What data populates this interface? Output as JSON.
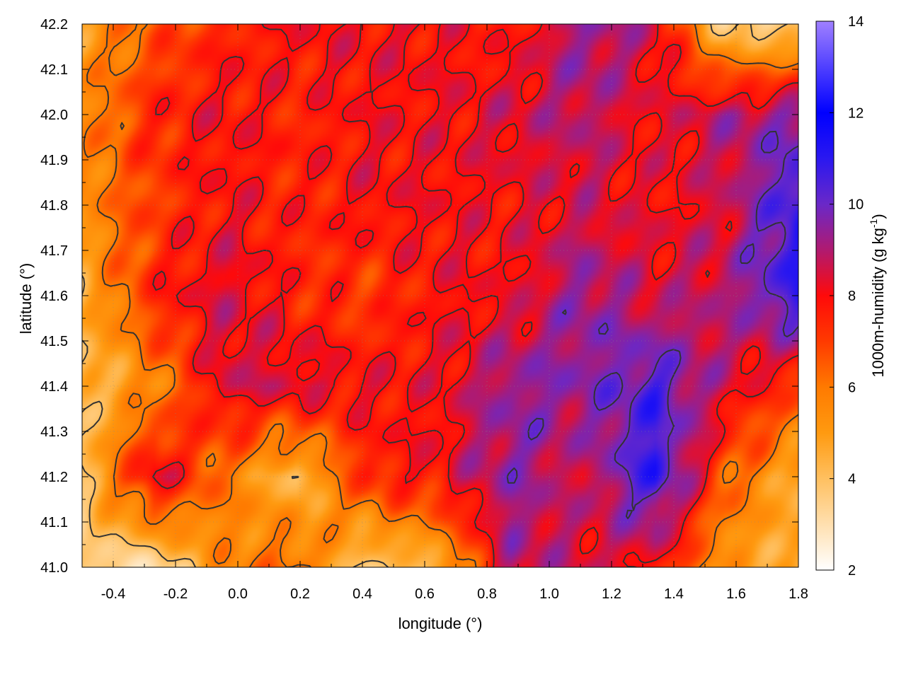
{
  "chart_data": {
    "type": "heatmap",
    "title": "",
    "xlabel": "longitude (°)",
    "ylabel": "latitude (°)",
    "xlim": [
      -0.5,
      1.8
    ],
    "ylim": [
      41.0,
      42.2
    ],
    "x_ticks": [
      "-0.4",
      "-0.2",
      "0.0",
      "0.2",
      "0.4",
      "0.6",
      "0.8",
      "1.0",
      "1.2",
      "1.4",
      "1.6",
      "1.8"
    ],
    "x_tick_values": [
      -0.4,
      -0.2,
      0.0,
      0.2,
      0.4,
      0.6,
      0.8,
      1.0,
      1.2,
      1.4,
      1.6,
      1.8
    ],
    "y_ticks": [
      "41.0",
      "41.1",
      "41.2",
      "41.3",
      "41.4",
      "41.5",
      "41.6",
      "41.7",
      "41.8",
      "41.9",
      "42.0",
      "42.1",
      "42.2"
    ],
    "y_tick_values": [
      41.0,
      41.1,
      41.2,
      41.3,
      41.4,
      41.5,
      41.6,
      41.7,
      41.8,
      41.9,
      42.0,
      42.1,
      42.2
    ],
    "grid": true,
    "colorbar": {
      "label_prefix": "1000m-humidity (g kg",
      "label_sup": "-1",
      "label_suffix": ")",
      "range": [
        2,
        14
      ],
      "ticks": [
        "2",
        "4",
        "6",
        "8",
        "10",
        "12",
        "14"
      ],
      "tick_values": [
        2,
        4,
        6,
        8,
        10,
        12,
        14
      ],
      "colors": [
        {
          "value": 2,
          "color": "#ffffff"
        },
        {
          "value": 4,
          "color": "#ffc060"
        },
        {
          "value": 5,
          "color": "#ff9a10"
        },
        {
          "value": 6,
          "color": "#ff7a00"
        },
        {
          "value": 7,
          "color": "#ff3a00"
        },
        {
          "value": 8,
          "color": "#ff0a0a"
        },
        {
          "value": 9,
          "color": "#b01a70"
        },
        {
          "value": 10,
          "color": "#6a28c8"
        },
        {
          "value": 11,
          "color": "#2a18f0"
        },
        {
          "value": 12,
          "color": "#0000ff"
        },
        {
          "value": 14,
          "color": "#a080ff"
        }
      ]
    },
    "contour_color": "#333333",
    "grid_lon": [
      -0.5,
      -0.27,
      -0.04,
      0.19,
      0.42,
      0.65,
      0.88,
      1.11,
      1.34,
      1.57,
      1.8
    ],
    "grid_lat": [
      41.0,
      41.2,
      41.4,
      41.6,
      41.8,
      42.0,
      42.2
    ],
    "humidity_grid": [
      [
        3.5,
        3.0,
        5.5,
        6.5,
        3.5,
        4.5,
        9.0,
        8.5,
        8.0,
        5.0,
        4.5
      ],
      [
        4.0,
        8.5,
        6.0,
        4.0,
        7.5,
        8.0,
        9.5,
        8.5,
        11.0,
        6.5,
        4.5
      ],
      [
        4.0,
        5.5,
        8.5,
        8.5,
        8.0,
        8.0,
        9.5,
        9.5,
        10.5,
        8.5,
        7.0
      ],
      [
        4.5,
        7.5,
        8.5,
        7.5,
        7.0,
        8.0,
        8.0,
        9.5,
        8.5,
        9.0,
        11.0
      ],
      [
        5.5,
        7.0,
        8.0,
        7.5,
        8.0,
        8.0,
        8.0,
        8.5,
        8.0,
        8.5,
        11.0
      ],
      [
        5.5,
        7.5,
        8.0,
        7.5,
        8.0,
        8.0,
        8.5,
        9.0,
        8.0,
        9.0,
        9.5
      ],
      [
        5.0,
        6.5,
        7.5,
        8.0,
        8.0,
        8.0,
        7.5,
        9.5,
        8.5,
        3.5,
        3.5
      ]
    ]
  }
}
